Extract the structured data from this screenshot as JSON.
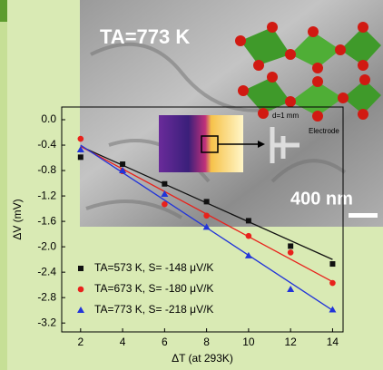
{
  "chart_data": {
    "type": "scatter",
    "x_label": "ΔT (at 293K)",
    "y_label": "ΔV (mV)",
    "x": [
      2,
      4,
      6,
      8,
      10,
      12,
      14
    ],
    "xlim": [
      1.1,
      14.5
    ],
    "xticks": [
      2,
      4,
      6,
      8,
      10,
      12,
      14
    ],
    "ylim": [
      -3.34,
      0.2
    ],
    "yticks": [
      {
        "value": 0,
        "label": "0.0"
      },
      -0.4,
      -0.8,
      -1.2,
      -1.6,
      {
        "value": -2,
        "label": "-2.0"
      },
      -2.4,
      -2.8,
      -3.2
    ],
    "fit_x": [
      2,
      14
    ],
    "series": [
      {
        "name": "TA=573 K, S= -148 μV/K",
        "color": "#111111",
        "marker": "square",
        "values": [
          -0.59,
          -0.7,
          -1.01,
          -1.29,
          -1.59,
          -1.99,
          -2.27
        ],
        "fit": [
          -0.42,
          -2.2
        ]
      },
      {
        "name": "TA=673 K, S= -180 μV/K",
        "color": "#e8221c",
        "marker": "circle",
        "values": [
          -0.3,
          -0.81,
          -1.33,
          -1.51,
          -1.83,
          -2.09,
          -2.57
        ],
        "fit": [
          -0.42,
          -2.55
        ]
      },
      {
        "name": "TA=773 K, S= -218 μV/K",
        "color": "#2235d8",
        "marker": "triangle",
        "values": [
          -0.47,
          -0.8,
          -1.17,
          -1.69,
          -2.14,
          -2.67,
          -2.99
        ],
        "fit": [
          -0.4,
          -3.0
        ]
      }
    ],
    "annotations": [
      "TA=773 K",
      "400 nm",
      "d=1 mm",
      "Electrode"
    ]
  }
}
